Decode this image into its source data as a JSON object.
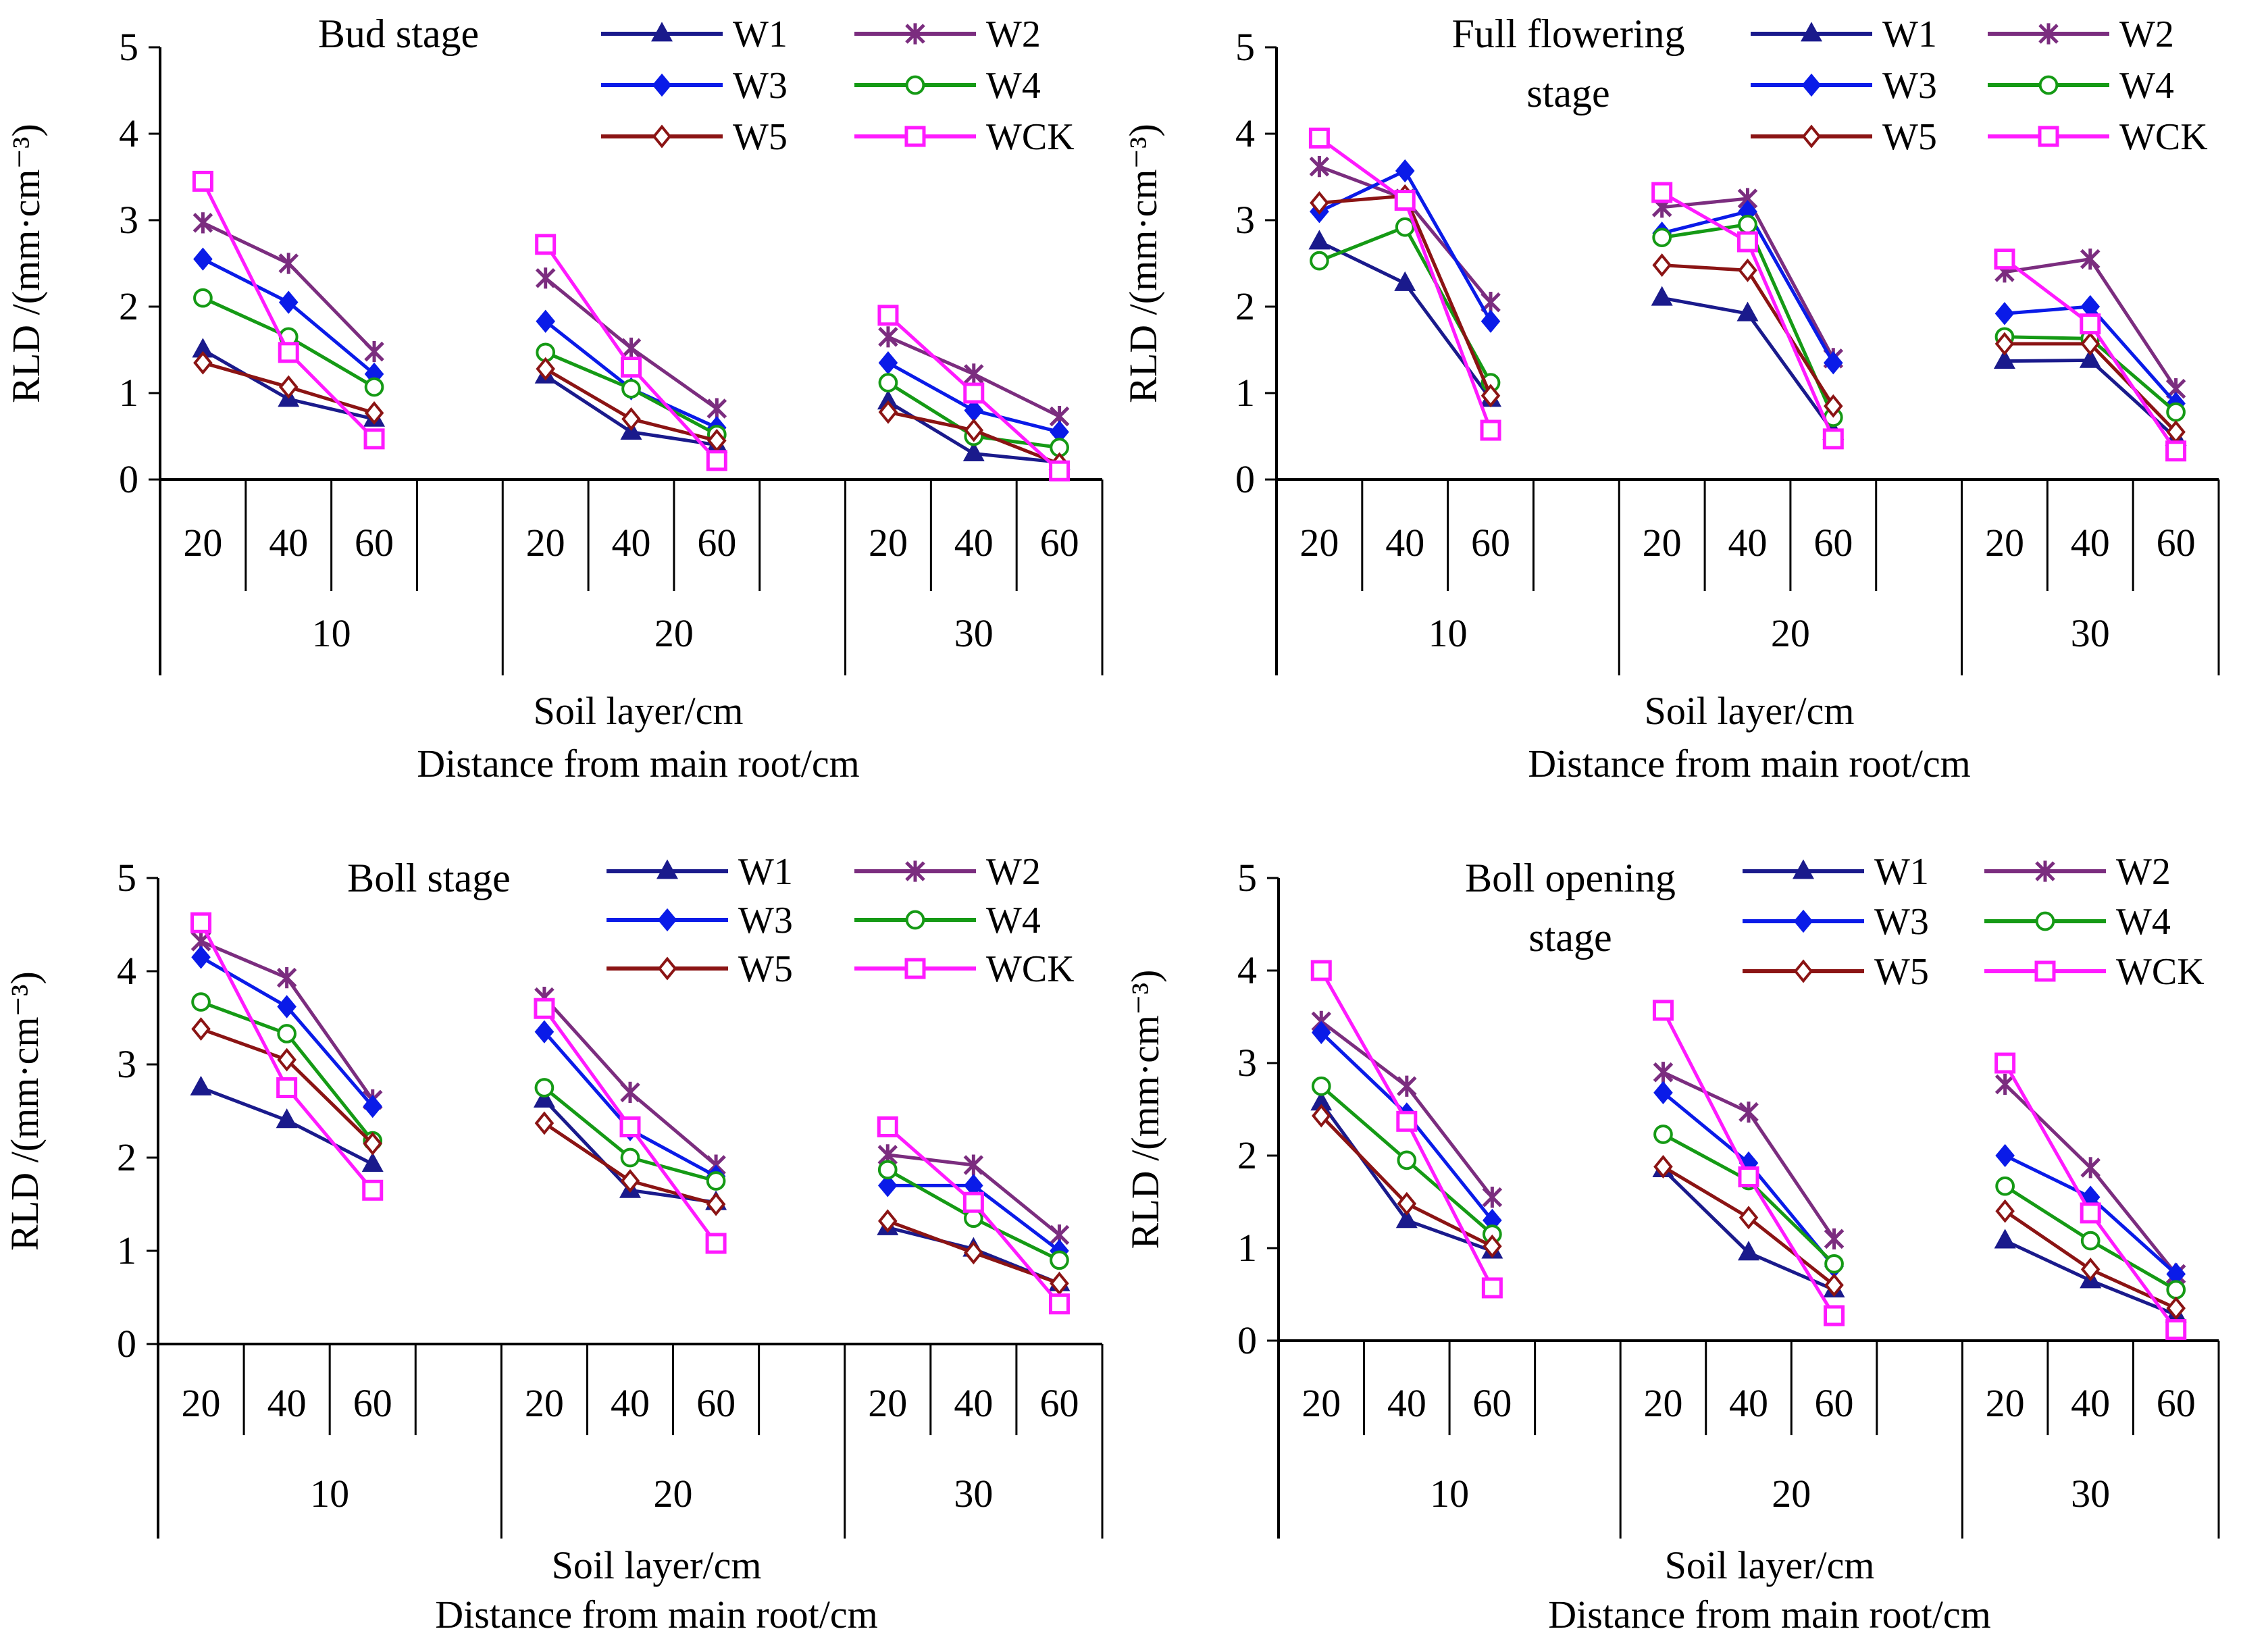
{
  "figure": {
    "ylabel": "RLD /(mm·cm⁻³)",
    "xlabel_line1": "Soil layer/cm",
    "xlabel_line2": "Distance from main root/cm"
  },
  "chart_data": [
    {
      "type": "line",
      "title": "Bud stage",
      "ylabel": "RLD /(mm·cm⁻³)",
      "xlabel": "Soil layer/cm / Distance from main root/cm",
      "ylim": [
        0,
        5
      ],
      "yticks": [
        "0",
        "1",
        "2",
        "3",
        "4",
        "5"
      ],
      "groups": [
        "10",
        "20",
        "30"
      ],
      "categories": [
        "20",
        "40",
        "60"
      ],
      "series": [
        {
          "name": "W1",
          "values": [
            [
              1.5,
              0.93,
              0.7
            ],
            [
              1.2,
              0.55,
              0.4
            ],
            [
              0.9,
              0.3,
              0.2
            ]
          ]
        },
        {
          "name": "W2",
          "values": [
            [
              2.97,
              2.5,
              1.48
            ],
            [
              2.33,
              1.52,
              0.82
            ],
            [
              1.65,
              1.22,
              0.73
            ]
          ]
        },
        {
          "name": "W3",
          "values": [
            [
              2.55,
              2.05,
              1.22
            ],
            [
              1.83,
              1.05,
              0.6
            ],
            [
              1.35,
              0.8,
              0.55
            ]
          ]
        },
        {
          "name": "W4",
          "values": [
            [
              2.1,
              1.65,
              1.07
            ],
            [
              1.47,
              1.05,
              0.52
            ],
            [
              1.12,
              0.5,
              0.37
            ]
          ]
        },
        {
          "name": "W5",
          "values": [
            [
              1.35,
              1.07,
              0.77
            ],
            [
              1.28,
              0.7,
              0.45
            ],
            [
              0.78,
              0.57,
              0.18
            ]
          ]
        },
        {
          "name": "WCK",
          "values": [
            [
              3.45,
              1.47,
              0.47
            ],
            [
              2.72,
              1.3,
              0.22
            ],
            [
              1.9,
              1.0,
              0.1
            ]
          ]
        }
      ]
    },
    {
      "type": "line",
      "title": "Full flowering stage",
      "title_line1": "Full flowering",
      "title_line2": "stage",
      "ylabel": "RLD /(mm·cm⁻³)",
      "xlabel": "Soil layer/cm / Distance from main root/cm",
      "ylim": [
        0,
        5
      ],
      "yticks": [
        "0",
        "1",
        "2",
        "3",
        "4",
        "5"
      ],
      "groups": [
        "10",
        "20",
        "30"
      ],
      "categories": [
        "20",
        "40",
        "60"
      ],
      "series": [
        {
          "name": "W1",
          "values": [
            [
              2.75,
              2.27,
              0.93
            ],
            [
              2.1,
              1.92,
              0.55
            ],
            [
              1.37,
              1.38,
              0.48
            ]
          ]
        },
        {
          "name": "W2",
          "values": [
            [
              3.62,
              3.25,
              2.05
            ],
            [
              3.15,
              3.25,
              1.4
            ],
            [
              2.4,
              2.55,
              1.05
            ]
          ]
        },
        {
          "name": "W3",
          "values": [
            [
              3.1,
              3.57,
              1.83
            ],
            [
              2.85,
              3.1,
              1.35
            ],
            [
              1.92,
              2.0,
              0.88
            ]
          ]
        },
        {
          "name": "W4",
          "values": [
            [
              2.53,
              2.92,
              1.12
            ],
            [
              2.8,
              2.95,
              0.72
            ],
            [
              1.65,
              1.63,
              0.78
            ]
          ]
        },
        {
          "name": "W5",
          "values": [
            [
              3.2,
              3.28,
              0.97
            ],
            [
              2.48,
              2.42,
              0.85
            ],
            [
              1.57,
              1.57,
              0.55
            ]
          ]
        },
        {
          "name": "WCK",
          "values": [
            [
              3.95,
              3.23,
              0.57
            ],
            [
              3.32,
              2.75,
              0.47
            ],
            [
              2.55,
              1.8,
              0.33
            ]
          ]
        }
      ]
    },
    {
      "type": "line",
      "title": "Boll stage",
      "ylabel": "RLD /(mm·cm⁻³)",
      "xlabel": "Soil layer/cm / Distance from main root/cm",
      "ylim": [
        0,
        5
      ],
      "yticks": [
        "0",
        "1",
        "2",
        "3",
        "4",
        "5"
      ],
      "groups": [
        "10",
        "20",
        "30"
      ],
      "categories": [
        "20",
        "40",
        "60"
      ],
      "series": [
        {
          "name": "W1",
          "values": [
            [
              2.75,
              2.4,
              1.93
            ],
            [
              2.62,
              1.65,
              1.52
            ],
            [
              1.25,
              1.02,
              0.65
            ]
          ]
        },
        {
          "name": "W2",
          "values": [
            [
              4.32,
              3.93,
              2.62
            ],
            [
              3.72,
              2.7,
              1.92
            ],
            [
              2.03,
              1.92,
              1.17
            ]
          ]
        },
        {
          "name": "W3",
          "values": [
            [
              4.15,
              3.62,
              2.55
            ],
            [
              3.35,
              2.3,
              1.8
            ],
            [
              1.7,
              1.7,
              1.0
            ]
          ]
        },
        {
          "name": "W4",
          "values": [
            [
              3.67,
              3.33,
              2.18
            ],
            [
              2.75,
              2.0,
              1.75
            ],
            [
              1.87,
              1.35,
              0.9
            ]
          ]
        },
        {
          "name": "W5",
          "values": [
            [
              3.38,
              3.05,
              2.15
            ],
            [
              2.37,
              1.75,
              1.5
            ],
            [
              1.32,
              0.98,
              0.65
            ]
          ]
        },
        {
          "name": "WCK",
          "values": [
            [
              4.52,
              2.75,
              1.65
            ],
            [
              3.6,
              2.33,
              1.08
            ],
            [
              2.33,
              1.52,
              0.43
            ]
          ]
        }
      ]
    },
    {
      "type": "line",
      "title": "Boll opening stage",
      "title_line1": "Boll opening",
      "title_line2": "stage",
      "ylabel": "RLD /(mm·cm⁻³)",
      "xlabel": "Soil layer/cm / Distance from main root/cm",
      "ylim": [
        0,
        5
      ],
      "yticks": [
        "0",
        "1",
        "2",
        "3",
        "4",
        "5"
      ],
      "groups": [
        "10",
        "20",
        "30"
      ],
      "categories": [
        "20",
        "40",
        "60"
      ],
      "series": [
        {
          "name": "W1",
          "values": [
            [
              2.57,
              1.3,
              0.97
            ],
            [
              1.85,
              0.95,
              0.55
            ],
            [
              1.08,
              0.65,
              0.28
            ]
          ]
        },
        {
          "name": "W2",
          "values": [
            [
              3.45,
              2.75,
              1.55
            ],
            [
              2.9,
              2.47,
              1.1
            ],
            [
              2.77,
              1.87,
              0.72
            ]
          ]
        },
        {
          "name": "W3",
          "values": [
            [
              3.33,
              2.45,
              1.3
            ],
            [
              2.68,
              1.92,
              0.8
            ],
            [
              2.0,
              1.55,
              0.72
            ]
          ]
        },
        {
          "name": "W4",
          "values": [
            [
              2.75,
              1.95,
              1.15
            ],
            [
              2.23,
              1.73,
              0.83
            ],
            [
              1.67,
              1.08,
              0.55
            ]
          ]
        },
        {
          "name": "W5",
          "values": [
            [
              2.43,
              1.48,
              1.02
            ],
            [
              1.88,
              1.33,
              0.6
            ],
            [
              1.4,
              0.77,
              0.35
            ]
          ]
        },
        {
          "name": "WCK",
          "values": [
            [
              4.0,
              2.37,
              0.57
            ],
            [
              3.57,
              1.77,
              0.27
            ],
            [
              3.0,
              1.38,
              0.12
            ]
          ]
        }
      ]
    }
  ],
  "style": {
    "W1": {
      "color": "#1a1a8c",
      "marker": "triangle"
    },
    "W2": {
      "color": "#7b2d7f",
      "marker": "star"
    },
    "W3": {
      "color": "#0a1be8",
      "marker": "diamond"
    },
    "W4": {
      "color": "#159a15",
      "marker": "circle-open"
    },
    "W5": {
      "color": "#8b1414",
      "marker": "diamond-open"
    },
    "WCK": {
      "color": "#ff1aff",
      "marker": "square-open"
    }
  }
}
